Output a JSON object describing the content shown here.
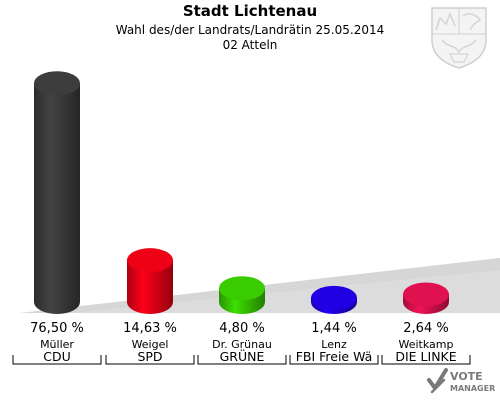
{
  "header": {
    "title": "Stadt Lichtenau",
    "subtitle": "Wahl des/der Landrats/Landrätin 25.05.2014",
    "district": "02 Atteln"
  },
  "logo": {
    "icon": "nrw-coat-of-arms-icon"
  },
  "watermark": {
    "text_line1": "VOTE",
    "text_line2": "MANAGER",
    "color": "#7a7a7a"
  },
  "chart_data": {
    "type": "bar",
    "categories": [
      "Müller",
      "Weigel",
      "Dr. Grünau",
      "Lenz",
      "Weitkamp"
    ],
    "parties": [
      "CDU",
      "SPD",
      "GRÜNE",
      "FBI Freie Wä",
      "DIE LINKE"
    ],
    "values": [
      76.5,
      14.63,
      4.8,
      1.44,
      2.64
    ],
    "value_labels": [
      "76,50 %",
      "14,63 %",
      "4,80 %",
      "1,44 %",
      "2,64 %"
    ],
    "colors": [
      "#3a3a3a",
      "#e30016",
      "#36c200",
      "#1e00d8",
      "#d4104b"
    ],
    "ylim": [
      0,
      100
    ],
    "grid": false,
    "legend": "none"
  }
}
